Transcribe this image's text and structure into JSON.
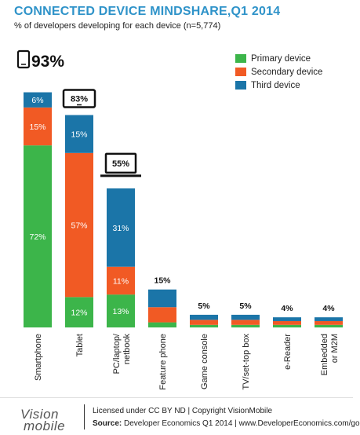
{
  "colors": {
    "primary": "#3cb54a",
    "secondary": "#f15a24",
    "third": "#1b75a8"
  },
  "chart_data": {
    "type": "bar",
    "stacked": true,
    "title": "CONNECTED DEVICE MINDSHARE,Q1 2014",
    "subtitle": "% of developers developing for each device (n=5,774)",
    "categories": [
      "Smartphone",
      "Tablet",
      "PC/laptop/netbook",
      "Feature phone",
      "Game console",
      "TV/set-top box",
      "e-Reader",
      "Embedded or M2M"
    ],
    "category_lines": [
      [
        "Smartphone"
      ],
      [
        "Tablet"
      ],
      [
        "PC/laptop/",
        "netbook"
      ],
      [
        "Feature phone"
      ],
      [
        "Game console"
      ],
      [
        "TV/set-top box"
      ],
      [
        "e-Reader"
      ],
      [
        "Embedded",
        "or M2M"
      ]
    ],
    "totals": [
      93,
      83,
      55,
      15,
      5,
      5,
      4,
      4
    ],
    "total_labels": [
      "93%",
      "83%",
      "55%",
      "15%",
      "5%",
      "5%",
      "4%",
      "4%"
    ],
    "series": [
      {
        "name": "Primary device",
        "values": [
          72,
          12,
          13,
          2,
          1,
          1,
          1,
          1
        ],
        "labels": [
          "72%",
          "12%",
          "13%",
          "",
          "",
          "",
          "",
          ""
        ]
      },
      {
        "name": "Secondary device",
        "values": [
          15,
          57,
          11,
          6,
          2,
          2,
          1.5,
          1.5
        ],
        "labels": [
          "15%",
          "57%",
          "11%",
          "",
          "",
          "",
          "",
          ""
        ]
      },
      {
        "name": "Third device",
        "values": [
          6,
          15,
          31,
          7,
          2,
          2,
          1.5,
          1.5
        ],
        "labels": [
          "6%",
          "15%",
          "31%",
          "",
          "",
          "",
          "",
          ""
        ]
      }
    ],
    "ylim": [
      0,
      100
    ],
    "legend_position": "top-right",
    "grid": false
  },
  "footer": {
    "logo_top": "Vision",
    "logo_bottom": "mobile",
    "license": "Licensed under CC BY ND | Copyright VisionMobile",
    "source_label": "Source:",
    "source_text": " Developer Economics Q1 2014 | www.DeveloperEconomics.com/go"
  }
}
